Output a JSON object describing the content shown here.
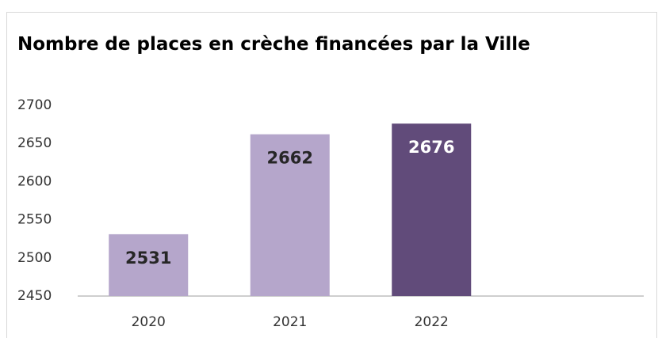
{
  "chart_data": {
    "type": "bar",
    "title": "Nombre de places en crèche financées par la Ville",
    "categories": [
      "2020",
      "2021",
      "2022",
      null
    ],
    "values": [
      2531,
      2662,
      2676,
      null
    ],
    "colors": [
      "#b5a6cb",
      "#b5a6cb",
      "#614b7a",
      null
    ],
    "ylim": [
      2450,
      2700
    ],
    "yticks": [
      2450,
      2500,
      2550,
      2600,
      2650,
      2700
    ],
    "grid": false
  }
}
